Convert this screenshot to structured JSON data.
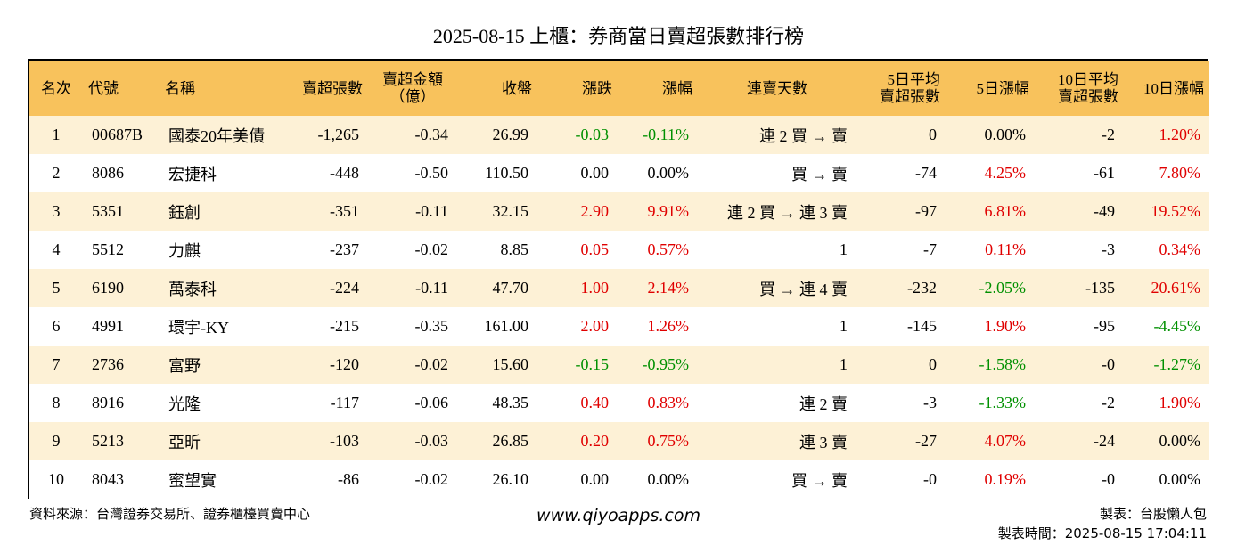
{
  "title": "2025-08-15 上櫃：券商當日賣超張數排行榜",
  "headers": {
    "rank": "名次",
    "code": "代號",
    "name": "名稱",
    "net_sell_lots": "賣超張數",
    "net_sell_amount_l1": "賣超金額",
    "net_sell_amount_l2": "（億）",
    "close": "收盤",
    "change": "漲跌",
    "change_pct": "漲幅",
    "consecutive_days": "連賣天數",
    "avg5_l1": "5日平均",
    "avg5_l2": "賣超張數",
    "pct5": "5日漲幅",
    "avg10_l1": "10日平均",
    "avg10_l2": "賣超張數",
    "pct10": "10日漲幅"
  },
  "rows": [
    {
      "rank": "1",
      "code": "00687B",
      "name": "國泰20年美債",
      "lots": "-1,265",
      "amount": "-0.34",
      "close": "26.99",
      "change": "-0.03",
      "change_dir": "down",
      "change_pct": "-0.11%",
      "days": "連 2 買 → 賣",
      "avg5": "0",
      "pct5": "0.00%",
      "pct5_dir": "flat",
      "avg10": "-2",
      "pct10": "1.20%",
      "pct10_dir": "up"
    },
    {
      "rank": "2",
      "code": "8086",
      "name": "宏捷科",
      "lots": "-448",
      "amount": "-0.50",
      "close": "110.50",
      "change": "0.00",
      "change_dir": "flat",
      "change_pct": "0.00%",
      "days": "買 → 賣",
      "avg5": "-74",
      "pct5": "4.25%",
      "pct5_dir": "up",
      "avg10": "-61",
      "pct10": "7.80%",
      "pct10_dir": "up"
    },
    {
      "rank": "3",
      "code": "5351",
      "name": "鈺創",
      "lots": "-351",
      "amount": "-0.11",
      "close": "32.15",
      "change": "2.90",
      "change_dir": "up",
      "change_pct": "9.91%",
      "days": "連 2 買 → 連 3 賣",
      "avg5": "-97",
      "pct5": "6.81%",
      "pct5_dir": "up",
      "avg10": "-49",
      "pct10": "19.52%",
      "pct10_dir": "up"
    },
    {
      "rank": "4",
      "code": "5512",
      "name": "力麒",
      "lots": "-237",
      "amount": "-0.02",
      "close": "8.85",
      "change": "0.05",
      "change_dir": "up",
      "change_pct": "0.57%",
      "days": "1",
      "avg5": "-7",
      "pct5": "0.11%",
      "pct5_dir": "up",
      "avg10": "-3",
      "pct10": "0.34%",
      "pct10_dir": "up"
    },
    {
      "rank": "5",
      "code": "6190",
      "name": "萬泰科",
      "lots": "-224",
      "amount": "-0.11",
      "close": "47.70",
      "change": "1.00",
      "change_dir": "up",
      "change_pct": "2.14%",
      "days": "買 → 連 4 賣",
      "avg5": "-232",
      "pct5": "-2.05%",
      "pct5_dir": "down",
      "avg10": "-135",
      "pct10": "20.61%",
      "pct10_dir": "up"
    },
    {
      "rank": "6",
      "code": "4991",
      "name": "環宇-KY",
      "lots": "-215",
      "amount": "-0.35",
      "close": "161.00",
      "change": "2.00",
      "change_dir": "up",
      "change_pct": "1.26%",
      "days": "1",
      "avg5": "-145",
      "pct5": "1.90%",
      "pct5_dir": "up",
      "avg10": "-95",
      "pct10": "-4.45%",
      "pct10_dir": "down"
    },
    {
      "rank": "7",
      "code": "2736",
      "name": "富野",
      "lots": "-120",
      "amount": "-0.02",
      "close": "15.60",
      "change": "-0.15",
      "change_dir": "down",
      "change_pct": "-0.95%",
      "days": "1",
      "avg5": "0",
      "pct5": "-1.58%",
      "pct5_dir": "down",
      "avg10": "-0",
      "pct10": "-1.27%",
      "pct10_dir": "down"
    },
    {
      "rank": "8",
      "code": "8916",
      "name": "光隆",
      "lots": "-117",
      "amount": "-0.06",
      "close": "48.35",
      "change": "0.40",
      "change_dir": "up",
      "change_pct": "0.83%",
      "days": "連 2 賣",
      "avg5": "-3",
      "pct5": "-1.33%",
      "pct5_dir": "down",
      "avg10": "-2",
      "pct10": "1.90%",
      "pct10_dir": "up"
    },
    {
      "rank": "9",
      "code": "5213",
      "name": "亞昕",
      "lots": "-103",
      "amount": "-0.03",
      "close": "26.85",
      "change": "0.20",
      "change_dir": "up",
      "change_pct": "0.75%",
      "days": "連 3 賣",
      "avg5": "-27",
      "pct5": "4.07%",
      "pct5_dir": "up",
      "avg10": "-24",
      "pct10": "0.00%",
      "pct10_dir": "flat"
    },
    {
      "rank": "10",
      "code": "8043",
      "name": "蜜望實",
      "lots": "-86",
      "amount": "-0.02",
      "close": "26.10",
      "change": "0.00",
      "change_dir": "flat",
      "change_pct": "0.00%",
      "days": "買 → 賣",
      "avg5": "-0",
      "pct5": "0.19%",
      "pct5_dir": "up",
      "avg10": "-0",
      "pct10": "0.00%",
      "pct10_dir": "flat"
    }
  ],
  "footer": {
    "source": "資料來源：台灣證券交易所、證券櫃檯買賣中心",
    "website": "www.qiyoapps.com",
    "maker": "製表：台股懶人包",
    "made_time": "製表時間：2025-08-15 17:04:11"
  },
  "colors": {
    "header_bg": "#f8c25c",
    "stripe_bg": "#fdf1d6",
    "up": "#e00000",
    "down": "#009000"
  }
}
